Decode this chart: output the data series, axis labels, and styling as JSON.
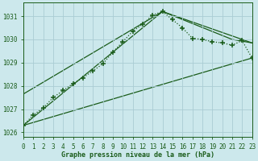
{
  "title": "Graphe pression niveau de la mer (hPa)",
  "bg_color": "#cce8ec",
  "grid_color": "#aaccd4",
  "line_color": "#1a5c1a",
  "xlim": [
    0,
    23
  ],
  "ylim": [
    1025.8,
    1031.6
  ],
  "yticks": [
    1026,
    1027,
    1028,
    1029,
    1030,
    1031
  ],
  "xticks": [
    0,
    1,
    2,
    3,
    4,
    5,
    6,
    7,
    8,
    9,
    10,
    11,
    12,
    13,
    14,
    15,
    16,
    17,
    18,
    19,
    20,
    21,
    22,
    23
  ],
  "curve_x": [
    0,
    1,
    2,
    3,
    4,
    5,
    6,
    7,
    8,
    9,
    10,
    11,
    12,
    13,
    14,
    15,
    16,
    17,
    18,
    19,
    20,
    21,
    22,
    23
  ],
  "curve_y": [
    1026.3,
    1026.75,
    1027.05,
    1027.5,
    1027.8,
    1028.1,
    1028.35,
    1028.65,
    1028.95,
    1029.45,
    1029.9,
    1030.35,
    1030.65,
    1031.05,
    1031.2,
    1030.85,
    1030.5,
    1030.05,
    1030.0,
    1029.9,
    1029.85,
    1029.75,
    1029.95,
    1029.2
  ],
  "line1_x": [
    0,
    23
  ],
  "line1_y": [
    1026.3,
    1029.2
  ],
  "line2_x": [
    0,
    14,
    22,
    23
  ],
  "line2_y": [
    1026.3,
    1031.2,
    1030.0,
    1029.85
  ],
  "line3_x": [
    0,
    14,
    21,
    23
  ],
  "line3_y": [
    1027.65,
    1031.2,
    1030.0,
    1029.85
  ]
}
